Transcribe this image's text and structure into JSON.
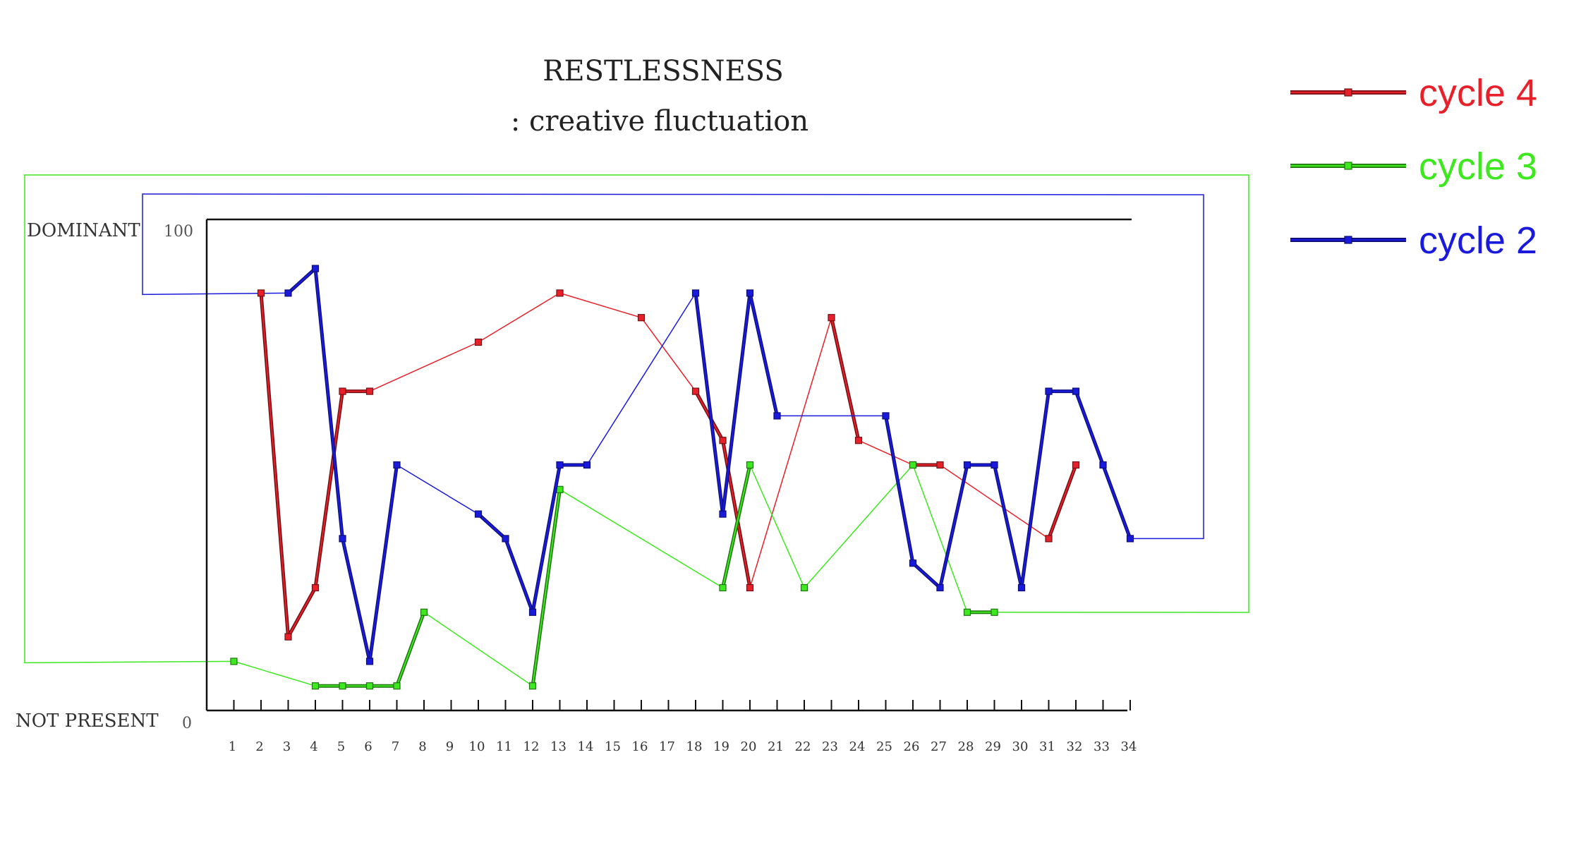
{
  "chart_data": {
    "type": "line",
    "title": "RESTLESSNESS",
    "subtitle": ": creative fluctuation",
    "y_top_label": "DOMINANT",
    "y_bottom_label": "NOT PRESENT",
    "ylim": [
      0,
      100
    ],
    "yticks": [
      "100",
      "0"
    ],
    "x": [
      1,
      2,
      3,
      4,
      5,
      6,
      7,
      8,
      9,
      10,
      11,
      12,
      13,
      14,
      15,
      16,
      17,
      18,
      19,
      20,
      21,
      22,
      23,
      24,
      25,
      26,
      27,
      28,
      29,
      30,
      31,
      32,
      33,
      34
    ],
    "legend_placement": "top-right",
    "series": [
      {
        "name": "cycle 4",
        "color": "#e8202a",
        "points": [
          [
            2,
            85
          ],
          [
            3,
            15
          ],
          [
            4,
            25
          ],
          [
            5,
            65
          ],
          [
            6,
            65
          ],
          [
            10,
            75
          ],
          [
            13,
            85
          ],
          [
            16,
            80
          ],
          [
            18,
            65
          ],
          [
            19,
            55
          ],
          [
            20,
            25
          ],
          [
            23,
            80
          ],
          [
            24,
            55
          ],
          [
            26,
            50
          ],
          [
            27,
            50
          ],
          [
            31,
            35
          ],
          [
            32,
            50
          ]
        ]
      },
      {
        "name": "cycle 3",
        "color": "#3ee81f",
        "points": [
          [
            1,
            10
          ],
          [
            4,
            5
          ],
          [
            5,
            5
          ],
          [
            6,
            5
          ],
          [
            7,
            5
          ],
          [
            8,
            20
          ],
          [
            12,
            5
          ],
          [
            13,
            45
          ],
          [
            19,
            25
          ],
          [
            20,
            50
          ],
          [
            22,
            25
          ],
          [
            26,
            50
          ],
          [
            28,
            20
          ],
          [
            29,
            20
          ]
        ]
      },
      {
        "name": "cycle 2",
        "color": "#1a1adc",
        "points": [
          [
            3,
            85
          ],
          [
            4,
            90
          ],
          [
            5,
            35
          ],
          [
            6,
            10
          ],
          [
            7,
            50
          ],
          [
            10,
            40
          ],
          [
            11,
            35
          ],
          [
            12,
            20
          ],
          [
            13,
            50
          ],
          [
            14,
            50
          ],
          [
            18,
            85
          ],
          [
            19,
            40
          ],
          [
            20,
            85
          ],
          [
            21,
            60
          ],
          [
            25,
            60
          ],
          [
            26,
            30
          ],
          [
            27,
            25
          ],
          [
            28,
            50
          ],
          [
            29,
            50
          ],
          [
            30,
            25
          ],
          [
            31,
            65
          ],
          [
            32,
            65
          ],
          [
            33,
            50
          ],
          [
            34,
            35
          ]
        ]
      }
    ]
  }
}
